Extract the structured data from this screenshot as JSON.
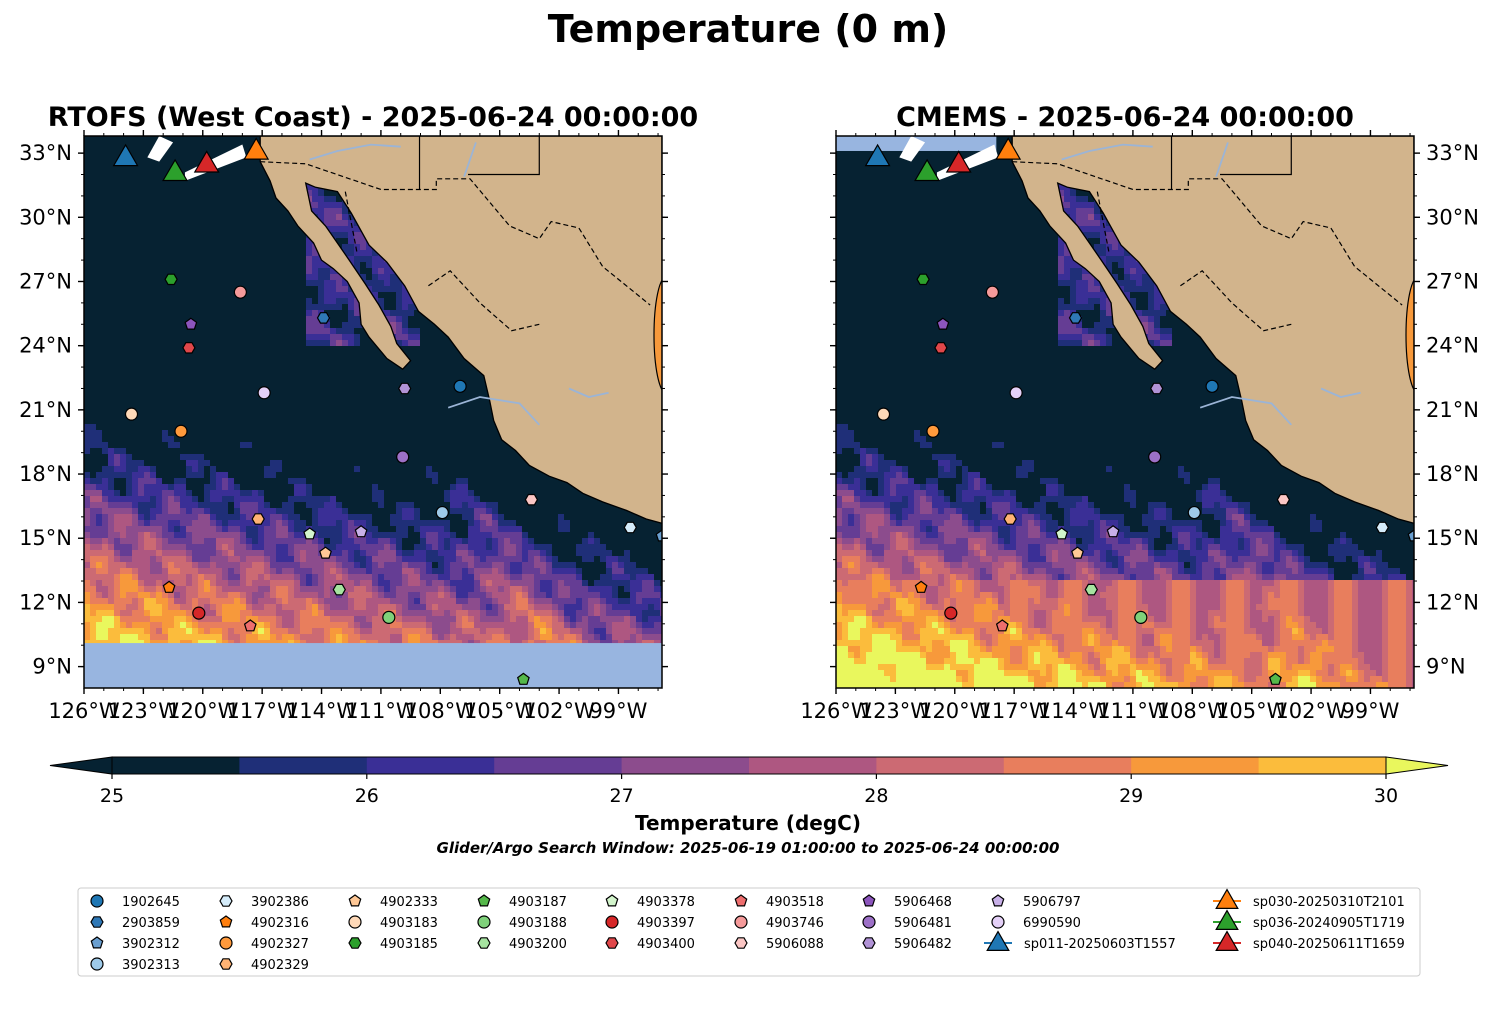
{
  "figure": {
    "title": "Temperature (0 m)"
  },
  "panels": [
    {
      "title": "RTOFS (West Coast) - 2025-06-24 00:00:00",
      "side": "left",
      "south_band": true
    },
    {
      "title": "CMEMS - 2025-06-24 00:00:00",
      "side": "right",
      "south_band": false
    }
  ],
  "axes": {
    "lon_ticks": [
      -126,
      -123,
      -120,
      -117,
      -114,
      -111,
      -108,
      -105,
      -102,
      -99
    ],
    "lon_labels": [
      "126°W",
      "123°W",
      "120°W",
      "117°W",
      "114°W",
      "111°W",
      "108°W",
      "105°W",
      "102°W",
      "99°W"
    ],
    "lat_ticks": [
      9,
      12,
      15,
      18,
      21,
      24,
      27,
      30,
      33
    ],
    "lat_labels": [
      "9°N",
      "12°N",
      "15°N",
      "18°N",
      "21°N",
      "24°N",
      "27°N",
      "30°N",
      "33°N"
    ],
    "lon_range": [
      -126,
      -96.8
    ],
    "lat_range": [
      8.0,
      33.8
    ]
  },
  "colorbar": {
    "label": "Temperature (degC)",
    "ticks": [
      "25",
      "26",
      "27",
      "28",
      "29",
      "30"
    ],
    "min": 25,
    "max": 30,
    "step": 0.5,
    "colors": [
      "#062232",
      "#1f2f78",
      "#3a2f96",
      "#653d94",
      "#8c4c8d",
      "#ae5781",
      "#cc6a73",
      "#e87e5d",
      "#f7993b",
      "#fbbc3c"
    ],
    "under_color": "#062232",
    "over_color": "#e9f75d"
  },
  "search_window": "Glider/Argo Search Window: 2025-06-19 01:00:00 to 2025-06-24 00:00:00",
  "map_colors": {
    "land": "#d2b48c",
    "cold_water": "#062232",
    "no_data": "#98b5e0",
    "rivers": "#9bb4d6"
  },
  "legend": {
    "items": [
      {
        "label": "1902645",
        "marker": "circle",
        "color": "#1f77b4"
      },
      {
        "label": "2903859",
        "marker": "hexagon",
        "color": "#2f78b6"
      },
      {
        "label": "3902312",
        "marker": "pentagon",
        "color": "#6a9fd0"
      },
      {
        "label": "3902313",
        "marker": "circle",
        "color": "#9ecae9"
      },
      {
        "label": "3902386",
        "marker": "hexagon",
        "color": "#d5ecfa"
      },
      {
        "label": "4902316",
        "marker": "pentagon",
        "color": "#ff7f0e"
      },
      {
        "label": "4902327",
        "marker": "circle",
        "color": "#ff9a3c"
      },
      {
        "label": "4902329",
        "marker": "hexagon",
        "color": "#ffb374"
      },
      {
        "label": "4902333",
        "marker": "pentagon",
        "color": "#ffc896"
      },
      {
        "label": "4903183",
        "marker": "circle",
        "color": "#ffd9b8"
      },
      {
        "label": "4903185",
        "marker": "hexagon",
        "color": "#2ca02c"
      },
      {
        "label": "4903187",
        "marker": "pentagon",
        "color": "#55b84a"
      },
      {
        "label": "4903188",
        "marker": "circle",
        "color": "#7fd17a"
      },
      {
        "label": "4903200",
        "marker": "hexagon",
        "color": "#a6e3a0"
      },
      {
        "label": "4903378",
        "marker": "pentagon",
        "color": "#d3f5cc"
      },
      {
        "label": "4903397",
        "marker": "circle",
        "color": "#d62728"
      },
      {
        "label": "4903400",
        "marker": "hexagon",
        "color": "#e0474a"
      },
      {
        "label": "4903518",
        "marker": "pentagon",
        "color": "#ee6e6e"
      },
      {
        "label": "4903746",
        "marker": "circle",
        "color": "#f59a9a"
      },
      {
        "label": "5906088",
        "marker": "hexagon",
        "color": "#fbc6c4"
      },
      {
        "label": "5906468",
        "marker": "pentagon",
        "color": "#8c55bd"
      },
      {
        "label": "5906481",
        "marker": "circle",
        "color": "#9d70c7"
      },
      {
        "label": "5906482",
        "marker": "hexagon",
        "color": "#b193d6"
      },
      {
        "label": "5906797",
        "marker": "pentagon",
        "color": "#c8b0e8"
      },
      {
        "label": "6990590",
        "marker": "circle",
        "color": "#e4d0f7"
      },
      {
        "label": "sp011-20250603T1557",
        "marker": "triangle",
        "color": "#1f77b4"
      },
      {
        "label": "sp030-20250310T2101",
        "marker": "triangle",
        "color": "#ff7f0e"
      },
      {
        "label": "sp036-20240905T1719",
        "marker": "triangle",
        "color": "#2ca02c"
      },
      {
        "label": "sp040-20250611T1659",
        "marker": "triangle",
        "color": "#d62728"
      }
    ]
  },
  "floats": [
    {
      "label": "1902645",
      "lon": -107.0,
      "lat": 22.1
    },
    {
      "label": "2903859",
      "lon": -113.9,
      "lat": 25.3
    },
    {
      "label": "3902312",
      "lon": -96.8,
      "lat": 15.1
    },
    {
      "label": "3902313",
      "lon": -107.9,
      "lat": 16.2
    },
    {
      "label": "3902386",
      "lon": -98.4,
      "lat": 15.5
    },
    {
      "label": "4902316",
      "lon": -121.7,
      "lat": 12.7
    },
    {
      "label": "4902327",
      "lon": -121.1,
      "lat": 20.0
    },
    {
      "label": "4902329",
      "lon": -117.2,
      "lat": 15.9
    },
    {
      "label": "4902333",
      "lon": -113.8,
      "lat": 14.3
    },
    {
      "label": "4903183",
      "lon": -123.6,
      "lat": 20.8
    },
    {
      "label": "4903185",
      "lon": -121.6,
      "lat": 27.1
    },
    {
      "label": "4903187",
      "lon": -103.8,
      "lat": 8.4
    },
    {
      "label": "4903188",
      "lon": -110.6,
      "lat": 11.3
    },
    {
      "label": "4903200",
      "lon": -113.1,
      "lat": 12.6
    },
    {
      "label": "4903378",
      "lon": -114.6,
      "lat": 15.2
    },
    {
      "label": "4903397",
      "lon": -120.2,
      "lat": 11.5
    },
    {
      "label": "4903400",
      "lon": -120.7,
      "lat": 23.9
    },
    {
      "label": "4903518",
      "lon": -117.6,
      "lat": 10.9
    },
    {
      "label": "4903746",
      "lon": -118.1,
      "lat": 26.5
    },
    {
      "label": "5906088",
      "lon": -103.4,
      "lat": 16.8
    },
    {
      "label": "5906468",
      "lon": -120.6,
      "lat": 25.0
    },
    {
      "label": "5906481",
      "lon": -109.9,
      "lat": 18.8
    },
    {
      "label": "5906482",
      "lon": -109.8,
      "lat": 22.0
    },
    {
      "label": "5906797",
      "lon": -112.0,
      "lat": 15.3
    },
    {
      "label": "6990590",
      "lon": -116.9,
      "lat": 21.8
    }
  ],
  "gliders": [
    {
      "label": "sp011-20250603T1557",
      "lon": -123.9,
      "lat": 32.9
    },
    {
      "label": "sp030-20250310T2101",
      "lon": -117.3,
      "lat": 33.2
    },
    {
      "label": "sp036-20240905T1719",
      "lon": -121.4,
      "lat": 32.2
    },
    {
      "label": "sp040-20250611T1659",
      "lon": -119.8,
      "lat": 32.6
    }
  ]
}
